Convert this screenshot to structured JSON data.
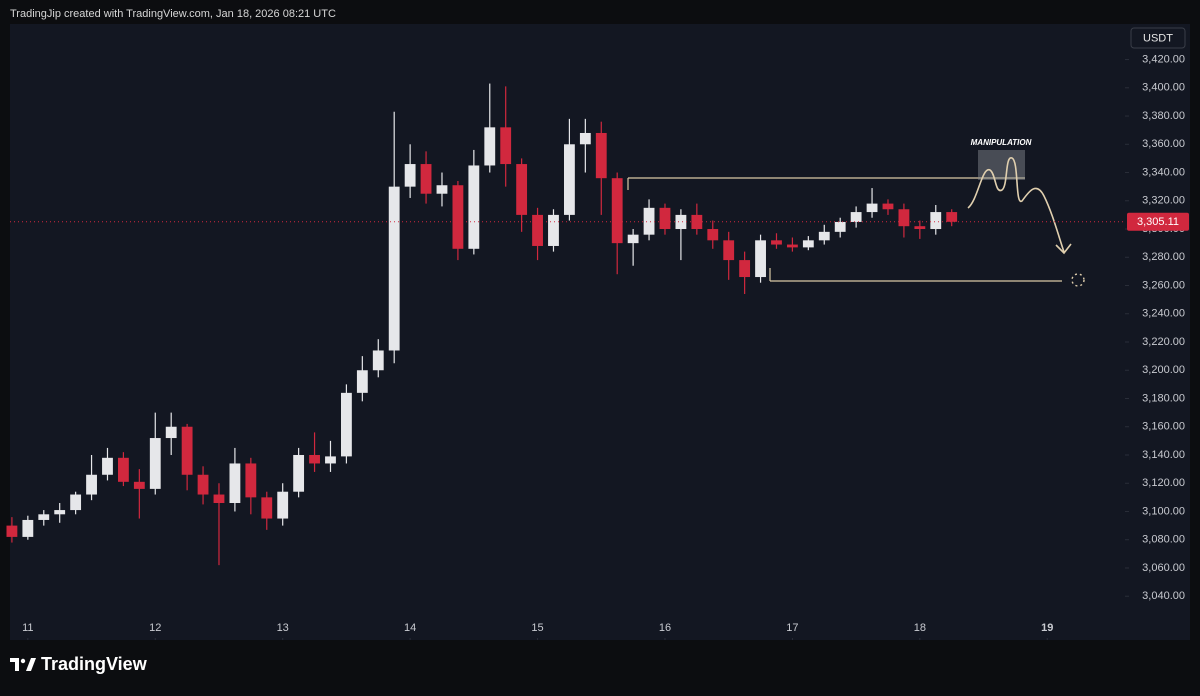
{
  "header": {
    "title": "TradingJip created with TradingView.com, Jan 18, 2026 08:21 UTC"
  },
  "footer": {
    "brand": "TradingView"
  },
  "chart_data": {
    "type": "candlestick",
    "currency": "USDT",
    "annotation": "MANIPULATION",
    "up_color": "#e6e7ea",
    "down_color": "#d1283e",
    "grid": false,
    "x": [
      10.875,
      11,
      11.125,
      11.25,
      11.375,
      11.5,
      11.625,
      11.75,
      11.875,
      12,
      12.125,
      12.25,
      12.375,
      12.5,
      12.625,
      12.75,
      12.875,
      13,
      13.125,
      13.25,
      13.375,
      13.5,
      13.625,
      13.75,
      13.875,
      14,
      14.125,
      14.25,
      14.375,
      14.5,
      14.625,
      14.75,
      14.875,
      15,
      15.125,
      15.25,
      15.375,
      15.5,
      15.625,
      15.75,
      15.875,
      16,
      16.125,
      16.25,
      16.375,
      16.5,
      16.625,
      16.75,
      16.875,
      17,
      17.125,
      17.25,
      17.375,
      17.5,
      17.625,
      17.75,
      17.875,
      18,
      18.125,
      18.25
    ],
    "open": [
      3090,
      3082,
      3094,
      3098,
      3101,
      3112,
      3126,
      3138,
      3121,
      3116,
      3152,
      3160,
      3126,
      3112,
      3106,
      3134,
      3110,
      3095,
      3114,
      3140,
      3134,
      3139,
      3184,
      3200,
      3214,
      3330,
      3346,
      3325,
      3331,
      3286,
      3345,
      3372,
      3346,
      3310,
      3288,
      3310,
      3360,
      3368,
      3336,
      3290,
      3296,
      3315,
      3300,
      3310,
      3300,
      3292,
      3278,
      3266,
      3292,
      3289,
      3287,
      3292,
      3298,
      3305,
      3312,
      3318,
      3314,
      3302,
      3300,
      3312
    ],
    "high": [
      3096,
      3097,
      3101,
      3106,
      3114,
      3140,
      3145,
      3142,
      3130,
      3170,
      3170,
      3162,
      3132,
      3120,
      3145,
      3138,
      3114,
      3120,
      3145,
      3156,
      3150,
      3190,
      3210,
      3222,
      3383,
      3360,
      3355,
      3340,
      3334,
      3356,
      3403,
      3401,
      3350,
      3315,
      3314,
      3378,
      3378,
      3376,
      3340,
      3300,
      3321,
      3318,
      3314,
      3318,
      3306,
      3298,
      3284,
      3296,
      3297,
      3294,
      3295,
      3303,
      3308,
      3316,
      3329,
      3321,
      3318,
      3306,
      3317,
      3314
    ],
    "low": [
      3078,
      3080,
      3090,
      3092,
      3098,
      3108,
      3122,
      3118,
      3095,
      3112,
      3140,
      3115,
      3105,
      3062,
      3100,
      3098,
      3087,
      3090,
      3110,
      3128,
      3128,
      3134,
      3178,
      3195,
      3205,
      3322,
      3318,
      3316,
      3278,
      3282,
      3340,
      3330,
      3298,
      3278,
      3284,
      3306,
      3340,
      3310,
      3268,
      3274,
      3292,
      3296,
      3278,
      3296,
      3286,
      3264,
      3254,
      3262,
      3286,
      3284,
      3285,
      3289,
      3294,
      3301,
      3308,
      3310,
      3294,
      3293,
      3296,
      3302
    ],
    "close": [
      3082,
      3094,
      3098,
      3101,
      3112,
      3126,
      3138,
      3121,
      3116,
      3152,
      3160,
      3126,
      3112,
      3106,
      3134,
      3110,
      3095,
      3114,
      3140,
      3134,
      3139,
      3184,
      3200,
      3214,
      3330,
      3346,
      3325,
      3331,
      3286,
      3345,
      3372,
      3346,
      3310,
      3288,
      3310,
      3360,
      3368,
      3336,
      3290,
      3296,
      3315,
      3300,
      3310,
      3300,
      3292,
      3278,
      3266,
      3292,
      3289,
      3287,
      3292,
      3298,
      3305,
      3312,
      3318,
      3314,
      3302,
      3300,
      3312,
      3305.11
    ],
    "last_price": {
      "value": 3305.11,
      "label": "3,305.11"
    },
    "xlim": [
      10.86,
      19.61
    ],
    "xticks": [
      11,
      12,
      13,
      14,
      15,
      16,
      17,
      18,
      19
    ],
    "ylim": [
      3009,
      3448
    ],
    "yticks": [
      {
        "value": 3040,
        "label": "3,040.00"
      },
      {
        "value": 3060,
        "label": "3,060.00"
      },
      {
        "value": 3080,
        "label": "3,080.00"
      },
      {
        "value": 3100,
        "label": "3,100.00"
      },
      {
        "value": 3120,
        "label": "3,120.00"
      },
      {
        "value": 3140,
        "label": "3,140.00"
      },
      {
        "value": 3160,
        "label": "3,160.00"
      },
      {
        "value": 3180,
        "label": "3,180.00"
      },
      {
        "value": 3200,
        "label": "3,200.00"
      },
      {
        "value": 3220,
        "label": "3,220.00"
      },
      {
        "value": 3240,
        "label": "3,240.00"
      },
      {
        "value": 3260,
        "label": "3,260.00"
      },
      {
        "value": 3280,
        "label": "3,280.00"
      },
      {
        "value": 3300,
        "label": "3,300.00"
      },
      {
        "value": 3320,
        "label": "3,320.00"
      },
      {
        "value": 3340,
        "label": "3,340.00"
      },
      {
        "value": 3360,
        "label": "3,360.00"
      },
      {
        "value": 3380,
        "label": "3,380.00"
      },
      {
        "value": 3400,
        "label": "3,400.00"
      },
      {
        "value": 3420,
        "label": "3,420.00"
      }
    ]
  }
}
